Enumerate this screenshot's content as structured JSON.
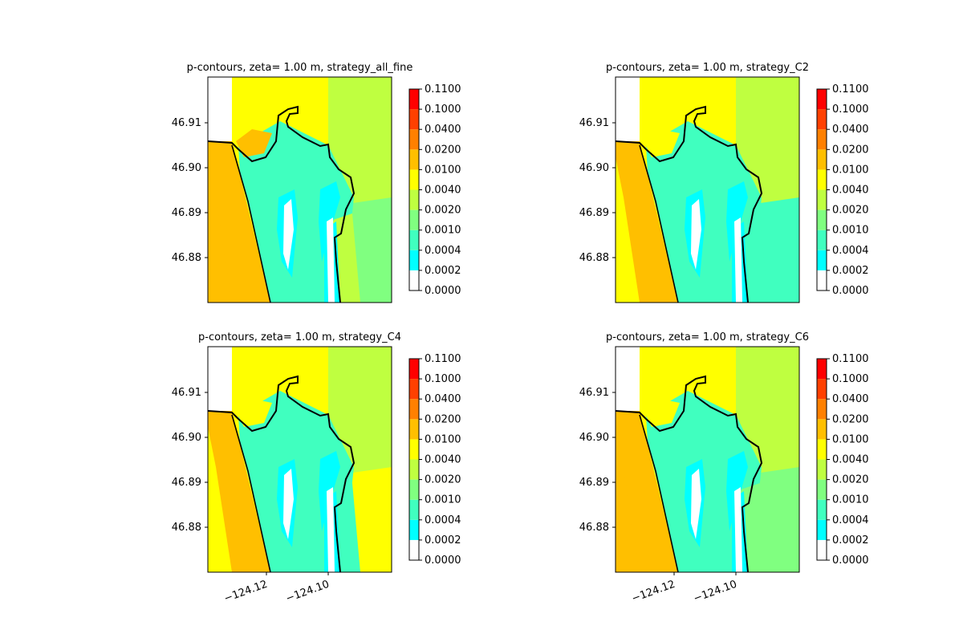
{
  "chart_data": {
    "type": "heatmap",
    "colorbar": {
      "levels": [
        "0.0000",
        "0.0002",
        "0.0004",
        "0.0010",
        "0.0020",
        "0.0040",
        "0.0100",
        "0.0200",
        "0.0400",
        "0.1000",
        "0.1100"
      ],
      "colors": [
        "#ffffff",
        "#00ffff",
        "#40ffbf",
        "#80ff80",
        "#bfff40",
        "#ffff00",
        "#ffbf00",
        "#ff8000",
        "#ff4000",
        "#ff0000"
      ]
    },
    "panels": [
      {
        "title": "p-contours, zeta= 1.00 m, strategy_all_fine",
        "yticks": [
          "46.91",
          "46.90",
          "46.89",
          "46.88"
        ],
        "xticks": [],
        "fields": {
          "north": "#ffff00",
          "east": "#bfff40",
          "southeast": "#80ff80",
          "bay": "#40ffbf",
          "ocean": "#ffbf00",
          "ocean_strip": "#ffbf00",
          "plume": "#ffbf00",
          "ebay": "#bfff40"
        }
      },
      {
        "title": "p-contours, zeta= 1.00 m, strategy_C2",
        "yticks": [
          "46.91",
          "46.90",
          "46.89",
          "46.88"
        ],
        "xticks": [],
        "fields": {
          "north": "#ffff00",
          "east": "#bfff40",
          "southeast": "#40ffbf",
          "bay": "#40ffbf",
          "ocean": "#ffbf00",
          "ocean_strip": "#ffff00",
          "plume": "#ffff00",
          "ebay": "#40ffbf"
        }
      },
      {
        "title": "p-contours, zeta= 1.00 m, strategy_C4",
        "yticks": [
          "46.91",
          "46.90",
          "46.89",
          "46.88"
        ],
        "xticks": [
          "−124.12",
          "−124.10"
        ],
        "fields": {
          "north": "#ffff00",
          "east": "#bfff40",
          "southeast": "#ffff00",
          "bay": "#40ffbf",
          "ocean": "#ffbf00",
          "ocean_strip": "#ffff00",
          "plume": "#ffff00",
          "ebay": "#40ffbf"
        }
      },
      {
        "title": "p-contours, zeta= 1.00 m, strategy_C6",
        "yticks": [
          "46.91",
          "46.90",
          "46.89",
          "46.88"
        ],
        "xticks": [
          "−124.12",
          "−124.10"
        ],
        "fields": {
          "north": "#ffff00",
          "east": "#bfff40",
          "southeast": "#80ff80",
          "bay": "#40ffbf",
          "ocean": "#ffbf00",
          "ocean_strip": "#ffbf00",
          "plume": "#ffff00",
          "ebay": "#80ff80"
        }
      }
    ]
  }
}
